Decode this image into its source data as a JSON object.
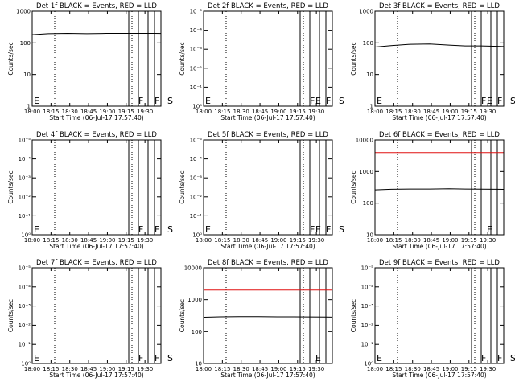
{
  "chart_data": [
    {
      "type": "line",
      "title": "Det 1f BLACK = Events, RED = LLD",
      "xlabel": "Start Time (06-Jul-17 17:57:40)",
      "ylabel": "Counts/sec",
      "x_ticks": [
        "18:00",
        "18:15",
        "18:30",
        "18:45",
        "19:00",
        "19:15",
        "19:30"
      ],
      "x_range_min": [
        0,
        40
      ],
      "y_scale": "log",
      "y_ticks": [
        "1",
        "10",
        "100",
        "1000"
      ],
      "ylim": [
        1,
        1000
      ],
      "y_decades": [
        0,
        3
      ],
      "markers": [
        {
          "label": "E",
          "x": 0
        },
        {
          "label": "F",
          "x": 33
        },
        {
          "label": "F",
          "x": 38
        },
        {
          "label": "S",
          "x": 42
        },
        {
          "label": "E",
          "x": 88
        }
      ],
      "solid_lines": [
        30,
        33,
        36,
        38,
        41,
        42,
        44,
        50
      ],
      "dotted_lines": [
        7,
        31,
        47,
        58
      ],
      "dashed_lines": [
        52,
        80
      ],
      "series": [
        {
          "kind": "events",
          "color": "#000000",
          "x": [
            -1,
            5,
            11,
            17,
            23,
            28,
            33,
            38,
            43,
            50
          ],
          "y": [
            180,
            195,
            200,
            195,
            200,
            200,
            200,
            200,
            195,
            195
          ],
          "start_y": 60,
          "end_y": 70
        },
        {
          "kind": "lld",
          "color": "#e01010",
          "x": [],
          "y": []
        }
      ]
    },
    {
      "type": "line",
      "title": "Det 2f BLACK = Events, RED = LLD",
      "xlabel": "Start Time (06-Jul-17 17:57:40)",
      "ylabel": "Counts/sec",
      "x_ticks": [
        "18:00",
        "18:15",
        "18:30",
        "18:45",
        "19:00",
        "19:15",
        "19:30"
      ],
      "x_range_min": [
        0,
        40
      ],
      "y_scale": "log",
      "y_ticks": [
        "10⁰",
        "10⁻¹",
        "10⁻²",
        "10⁻³",
        "10⁻⁴",
        "10⁻⁵"
      ],
      "y_decades": [
        0,
        5
      ],
      "markers": [
        {
          "label": "E",
          "x": 0
        },
        {
          "label": "F",
          "x": 33
        },
        {
          "label": "F",
          "x": 38
        },
        {
          "label": "S",
          "x": 42
        },
        {
          "label": "E",
          "x": 88
        }
      ],
      "solid_lines": [
        30,
        33,
        36,
        38,
        41,
        42,
        44,
        50
      ],
      "dotted_lines": [
        7,
        31,
        47,
        58
      ],
      "dashed_lines": [
        52,
        80
      ],
      "series": [
        {
          "kind": "events",
          "color": "#000000",
          "x": [],
          "y": []
        },
        {
          "kind": "lld",
          "color": "#e01010",
          "x": [],
          "y": []
        }
      ]
    },
    {
      "type": "line",
      "title": "Det 3f BLACK = Events, RED = LLD",
      "xlabel": "Start Time (06-Jul-17 17:57:40)",
      "ylabel": "Counts/sec",
      "x_ticks": [
        "18:00",
        "18:15",
        "18:30",
        "18:45",
        "19:00",
        "19:15",
        "19:30"
      ],
      "x_range_min": [
        0,
        40
      ],
      "y_scale": "log",
      "y_ticks": [
        "1",
        "10",
        "100",
        "1000"
      ],
      "ylim": [
        1,
        1000
      ],
      "y_decades": [
        0,
        3
      ],
      "markers": [
        {
          "label": "E",
          "x": 0
        },
        {
          "label": "F",
          "x": 33
        },
        {
          "label": "F",
          "x": 38
        },
        {
          "label": "S",
          "x": 42
        },
        {
          "label": "E",
          "x": 88
        }
      ],
      "solid_lines": [
        30,
        33,
        36,
        38,
        41,
        42,
        44,
        50
      ],
      "dotted_lines": [
        7,
        31,
        47,
        58
      ],
      "dashed_lines": [
        52,
        80
      ],
      "series": [
        {
          "kind": "events",
          "color": "#000000",
          "x": [
            -1,
            5,
            11,
            17,
            23,
            28,
            33,
            38,
            43,
            50
          ],
          "y": [
            72,
            82,
            90,
            92,
            85,
            80,
            80,
            78,
            75,
            72
          ],
          "start_y": 25,
          "end_y": 25
        },
        {
          "kind": "lld",
          "color": "#e01010",
          "x": [],
          "y": []
        }
      ]
    },
    {
      "type": "line",
      "title": "Det 4f BLACK = Events, RED = LLD",
      "xlabel": "Start Time (06-Jul-17 17:57:40)",
      "ylabel": "Counts/sec",
      "x_ticks": [
        "18:00",
        "18:15",
        "18:30",
        "18:45",
        "19:00",
        "19:15",
        "19:30"
      ],
      "x_range_min": [
        0,
        40
      ],
      "y_scale": "log",
      "y_ticks": [
        "10⁰",
        "10⁻¹",
        "10⁻²",
        "10⁻³",
        "10⁻⁴",
        "10⁻⁵"
      ],
      "y_decades": [
        0,
        5
      ],
      "markers": [
        {
          "label": "E",
          "x": 0
        },
        {
          "label": "F",
          "x": 33
        },
        {
          "label": "F",
          "x": 38
        },
        {
          "label": "S",
          "x": 42
        },
        {
          "label": "E",
          "x": 88
        }
      ],
      "solid_lines": [
        30,
        33,
        36,
        38,
        41,
        42,
        44,
        50
      ],
      "dotted_lines": [
        7,
        31,
        47,
        58
      ],
      "dashed_lines": [
        52,
        80
      ],
      "series": [
        {
          "kind": "events",
          "color": "#000000",
          "x": [],
          "y": []
        },
        {
          "kind": "lld",
          "color": "#e01010",
          "x": [],
          "y": []
        }
      ]
    },
    {
      "type": "line",
      "title": "Det 5f BLACK = Events, RED = LLD",
      "xlabel": "Start Time (06-Jul-17 17:57:40)",
      "ylabel": "Counts/sec",
      "x_ticks": [
        "18:00",
        "18:15",
        "18:30",
        "18:45",
        "19:00",
        "19:15",
        "19:30"
      ],
      "x_range_min": [
        0,
        40
      ],
      "y_scale": "log",
      "y_ticks": [
        "10⁰",
        "10⁻¹",
        "10⁻²",
        "10⁻³",
        "10⁻⁴",
        "10⁻⁵"
      ],
      "y_decades": [
        0,
        5
      ],
      "markers": [
        {
          "label": "E",
          "x": 0
        },
        {
          "label": "F",
          "x": 33
        },
        {
          "label": "F",
          "x": 38
        },
        {
          "label": "S",
          "x": 42
        },
        {
          "label": "E",
          "x": 88
        }
      ],
      "solid_lines": [
        30,
        33,
        36,
        38,
        41,
        42,
        44,
        50
      ],
      "dotted_lines": [
        7,
        31,
        47,
        58
      ],
      "dashed_lines": [
        52,
        80
      ],
      "series": [
        {
          "kind": "events",
          "color": "#000000",
          "x": [],
          "y": []
        },
        {
          "kind": "lld",
          "color": "#e01010",
          "x": [],
          "y": []
        }
      ]
    },
    {
      "type": "line",
      "title": "Det 6f BLACK = Events, RED = LLD",
      "xlabel": "Start Time (06-Jul-17 17:57:40)",
      "ylabel": "Counts/sec",
      "x_ticks": [
        "18:00",
        "18:15",
        "18:30",
        "18:45",
        "19:00",
        "19:15",
        "19:30"
      ],
      "x_range_min": [
        0,
        40
      ],
      "y_scale": "log",
      "y_ticks": [
        "10",
        "100",
        "1000",
        "10000"
      ],
      "ylim": [
        10,
        10000
      ],
      "y_decades": [
        1,
        4
      ],
      "markers": [],
      "solid_lines": [
        30,
        33,
        36,
        38,
        41,
        42,
        44,
        50
      ],
      "dotted_lines": [
        7,
        31,
        47,
        58
      ],
      "dashed_lines": [
        52,
        80
      ],
      "series": [
        {
          "kind": "events",
          "color": "#000000",
          "x": [
            -1,
            5,
            11,
            17,
            23,
            28,
            33,
            38,
            43,
            50
          ],
          "y": [
            260,
            275,
            280,
            280,
            285,
            280,
            278,
            275,
            272,
            270
          ],
          "start_y": 80,
          "end_y": 80
        },
        {
          "kind": "lld",
          "color": "#e01010",
          "x": [
            -10,
            0,
            20,
            40,
            50,
            53,
            56,
            59,
            62,
            64,
            66,
            68,
            70,
            72,
            74,
            76,
            78,
            81,
            84,
            88,
            92,
            96,
            100
          ],
          "y": [
            4000,
            4000,
            4000,
            4000,
            4000,
            4200,
            5600,
            8200,
            11000,
            11800,
            11500,
            10500,
            9000,
            7800,
            7000,
            6500,
            6000,
            5200,
            4600,
            4200,
            4000,
            4000,
            4000
          ]
        }
      ]
    },
    {
      "type": "line",
      "title": "Det 7f BLACK = Events, RED = LLD",
      "xlabel": "Start Time (06-Jul-17 17:57:40)",
      "ylabel": "Counts/sec",
      "x_ticks": [
        "18:00",
        "18:15",
        "18:30",
        "18:45",
        "19:00",
        "19:15",
        "19:30"
      ],
      "x_range_min": [
        0,
        40
      ],
      "y_scale": "log",
      "y_ticks": [
        "10⁰",
        "10⁻¹",
        "10⁻²",
        "10⁻³",
        "10⁻⁴",
        "10⁻⁵"
      ],
      "y_decades": [
        0,
        5
      ],
      "markers": [
        {
          "label": "E",
          "x": 0
        },
        {
          "label": "F",
          "x": 33
        },
        {
          "label": "F",
          "x": 38
        },
        {
          "label": "S",
          "x": 42
        },
        {
          "label": "E",
          "x": 88
        }
      ],
      "solid_lines": [
        30,
        33,
        36,
        38,
        41,
        42,
        44,
        50
      ],
      "dotted_lines": [
        7,
        31,
        47,
        58
      ],
      "dashed_lines": [
        52,
        80
      ],
      "series": [
        {
          "kind": "events",
          "color": "#000000",
          "x": [],
          "y": []
        },
        {
          "kind": "lld",
          "color": "#e01010",
          "x": [],
          "y": []
        }
      ]
    },
    {
      "type": "line",
      "title": "Det 8f BLACK = Events, RED = LLD",
      "xlabel": "Start Time (06-Jul-17 17:57:40)",
      "ylabel": "Counts/sec",
      "x_ticks": [
        "18:00",
        "18:15",
        "18:30",
        "18:45",
        "19:00",
        "19:15",
        "19:30"
      ],
      "x_range_min": [
        0,
        40
      ],
      "y_scale": "log",
      "y_ticks": [
        "10",
        "100",
        "1000",
        "10000"
      ],
      "ylim": [
        10,
        10000
      ],
      "y_decades": [
        1,
        4
      ],
      "markers": [],
      "solid_lines": [
        30,
        33,
        36,
        38,
        41,
        42,
        44,
        50
      ],
      "dotted_lines": [
        7,
        31,
        47,
        58
      ],
      "dashed_lines": [
        52,
        80
      ],
      "series": [
        {
          "kind": "events",
          "color": "#000000",
          "x": [
            -1,
            5,
            11,
            17,
            23,
            28,
            33,
            38,
            43,
            50
          ],
          "y": [
            280,
            290,
            295,
            295,
            290,
            290,
            288,
            285,
            282,
            280
          ],
          "start_y": 60,
          "end_y": 60
        },
        {
          "kind": "lld",
          "color": "#e01010",
          "x": [
            -10,
            0,
            20,
            40,
            50,
            53,
            56,
            59,
            62,
            64,
            66,
            68,
            70,
            72,
            74,
            76,
            78,
            81,
            84,
            88,
            92,
            96,
            100
          ],
          "y": [
            2000,
            2000,
            2000,
            2000,
            2000,
            2300,
            3800,
            6500,
            10000,
            12000,
            12000,
            10500,
            8500,
            7000,
            5800,
            4600,
            3800,
            3000,
            2500,
            2200,
            2000,
            2000,
            2000
          ]
        }
      ]
    },
    {
      "type": "line",
      "title": "Det 9f BLACK = Events, RED = LLD",
      "xlabel": "Start Time (06-Jul-17 17:57:40)",
      "ylabel": "Counts/sec",
      "x_ticks": [
        "18:00",
        "18:15",
        "18:30",
        "18:45",
        "19:00",
        "19:15",
        "19:30"
      ],
      "x_range_min": [
        0,
        40
      ],
      "y_scale": "log",
      "y_ticks": [
        "10⁰",
        "10⁻¹",
        "10⁻²",
        "10⁻³",
        "10⁻⁴",
        "10⁻⁵"
      ],
      "y_decades": [
        0,
        5
      ],
      "markers": [
        {
          "label": "E",
          "x": 0
        },
        {
          "label": "F",
          "x": 33
        },
        {
          "label": "F",
          "x": 38
        },
        {
          "label": "S",
          "x": 42
        },
        {
          "label": "E",
          "x": 88
        }
      ],
      "solid_lines": [
        30,
        33,
        36,
        38,
        41,
        42,
        44,
        50
      ],
      "dotted_lines": [
        7,
        31,
        47,
        58
      ],
      "dashed_lines": [
        52,
        80
      ],
      "series": [
        {
          "kind": "events",
          "color": "#000000",
          "x": [],
          "y": []
        },
        {
          "kind": "lld",
          "color": "#e01010",
          "x": [],
          "y": []
        }
      ]
    }
  ]
}
